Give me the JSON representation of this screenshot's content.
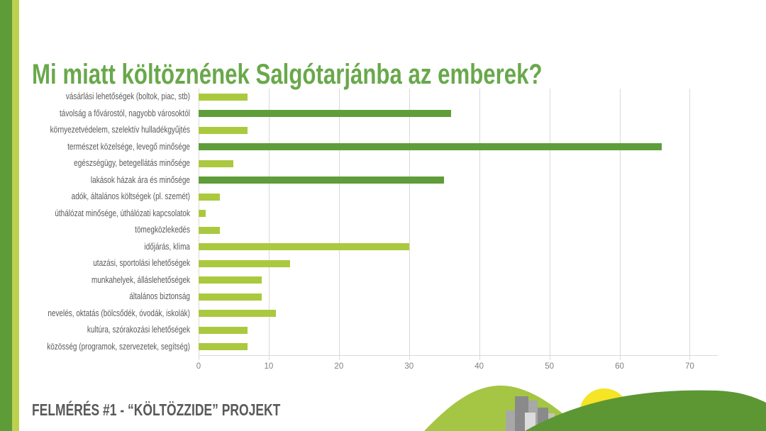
{
  "slide": {
    "title": "Mi miatt költöznének Salgótarjánba az emberek?",
    "footer": "FELMÉRÉS #1 - “KÖLTÖZZIDE” PROJEKT"
  },
  "colors": {
    "accent_dark": "#5e9c38",
    "accent_light": "#bcd14f",
    "title_green": "#69a84b",
    "bar_dark": "#5f9d3a",
    "bar_light": "#abc93f",
    "text_gray": "#595959",
    "axis_gray": "#808080",
    "grid_gray": "#d9d9d9",
    "sun_yellow": "#f6e427",
    "hill_light": "#a5c544",
    "hill_dark": "#5c9733",
    "building_gray_1": "#8a8a8a",
    "building_gray_2": "#a8a8a8",
    "building_gray_3": "#c2c2c2",
    "building_gray_4": "#dcdcdc"
  },
  "chart_data": {
    "type": "bar",
    "orientation": "horizontal",
    "title": "Mi miatt költöznének Salgótarjánba az emberek?",
    "xlabel": "",
    "ylabel": "",
    "grid": true,
    "legend": false,
    "xlim": [
      0,
      74
    ],
    "x_ticks": [
      0,
      10,
      20,
      30,
      40,
      50,
      60,
      70
    ],
    "x_tick_labels": [
      "0",
      "10",
      "20",
      "30",
      "40",
      "50",
      "60",
      "70"
    ],
    "categories": [
      "vásárlási lehetőségek (boltok, piac, stb)",
      "távolság a fővárostól, nagyobb városoktól",
      "környezetvédelem, szelektív hulladékgyűjtés",
      "természet közelsége, levegő minősége",
      "egészségügy, betegellátás minősége",
      "lakások házak ára és minősége",
      "adók, általános költségek (pl. szemét)",
      "úthálózat minősége, úthálózati kapcsolatok",
      "tömegközlekedés",
      "időjárás, klíma",
      "utazási, sportolási lehetőségek",
      "munkahelyek, álláslehetőségek",
      "általános biztonság",
      "nevelés, oktatás (bölcsődék, óvodák, iskolák)",
      "kultúra, szórakozási lehetőségek",
      "közösség (programok, szervezetek, segítség)"
    ],
    "values": [
      7,
      36,
      7,
      66,
      5,
      35,
      3,
      1,
      3,
      30,
      13,
      9,
      9,
      11,
      7,
      7
    ],
    "bar_colors": [
      "#abc93f",
      "#5f9d3a",
      "#abc93f",
      "#5f9d3a",
      "#abc93f",
      "#5f9d3a",
      "#abc93f",
      "#abc93f",
      "#abc93f",
      "#abc93f",
      "#abc93f",
      "#abc93f",
      "#abc93f",
      "#abc93f",
      "#abc93f",
      "#abc93f"
    ]
  },
  "decoration": {
    "icons": [
      "hill-light-icon",
      "city-buildings-icon",
      "sun-icon",
      "hill-dark-icon"
    ]
  }
}
